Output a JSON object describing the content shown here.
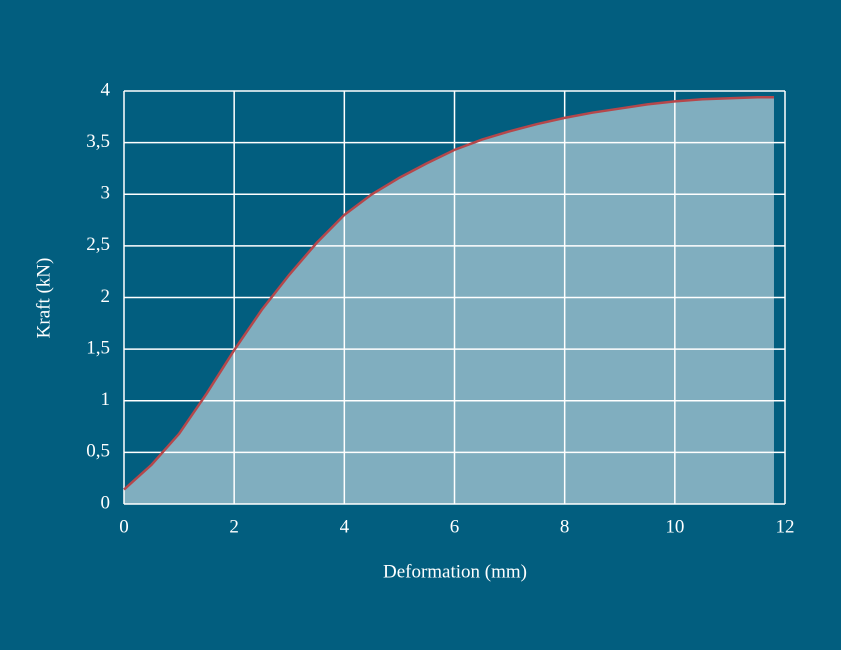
{
  "chart_data": {
    "type": "area",
    "xlabel": "Deformation (mm)",
    "ylabel": "Kraft (kN)",
    "x": [
      0,
      0.5,
      1,
      1.5,
      2,
      2.5,
      3,
      3.5,
      4,
      4.5,
      5,
      5.5,
      6,
      6.5,
      7,
      7.5,
      8,
      8.5,
      9,
      9.5,
      10,
      10.5,
      11,
      11.5,
      11.8
    ],
    "values": [
      0.14,
      0.38,
      0.68,
      1.07,
      1.49,
      1.88,
      2.22,
      2.53,
      2.8,
      3.0,
      3.16,
      3.3,
      3.43,
      3.53,
      3.61,
      3.68,
      3.74,
      3.79,
      3.83,
      3.87,
      3.9,
      3.92,
      3.93,
      3.94,
      3.94
    ],
    "line_color": "#b5474b",
    "fill_color": "#80aebf",
    "xlim": [
      0,
      12
    ],
    "xticks": [
      0,
      2,
      4,
      6,
      8,
      10,
      12
    ],
    "ylim": [
      0,
      4
    ],
    "yticks": [
      0,
      {
        "value": 0.5,
        "label": "0,5"
      },
      1,
      {
        "value": 1.5,
        "label": "1,5"
      },
      2,
      {
        "value": 2.5,
        "label": "2,5"
      },
      3,
      {
        "value": 3.5,
        "label": "3,5"
      },
      4
    ],
    "grid": true
  }
}
